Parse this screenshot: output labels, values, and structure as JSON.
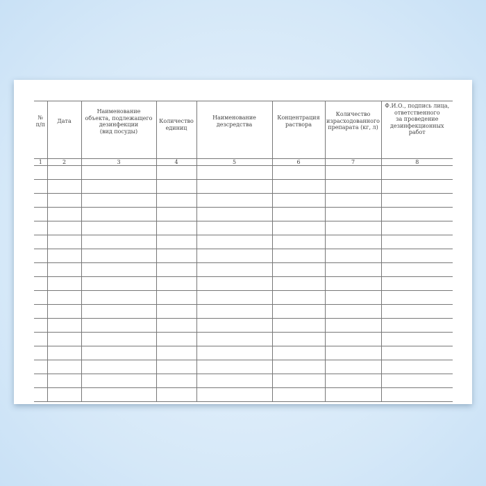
{
  "journal": {
    "columns": [
      {
        "header": "№\nп/п",
        "number": "1"
      },
      {
        "header": "Дата",
        "number": "2"
      },
      {
        "header": "Наименование\nобъекта, подлежащего\nдезинфекции\n(вид посуды)",
        "number": "3"
      },
      {
        "header": "Количество\nединиц",
        "number": "4"
      },
      {
        "header": "Наименование\nдезсредства",
        "number": "5"
      },
      {
        "header": "Концентрация\nраствора",
        "number": "6"
      },
      {
        "header": "Количество\nизрасходованного\nпрепарата (кг, л)",
        "number": "7"
      },
      {
        "header": "Ф.И.О., подпись лица,\nответственного\nза проведение\nдезинфекционных\nработ",
        "number": "8"
      }
    ],
    "empty_rows": 17
  }
}
